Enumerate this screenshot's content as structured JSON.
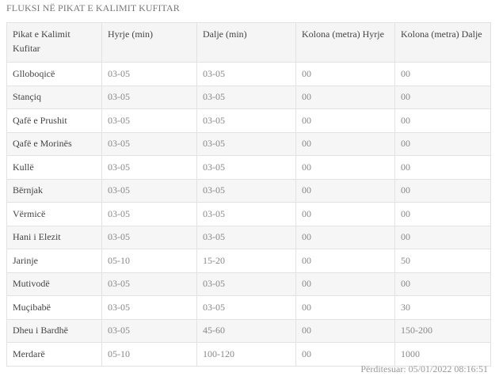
{
  "title": "FLUKSI NË PIKAT E KALIMIT KUFITAR",
  "headers": [
    "Pikat e Kalimit Kufitar",
    "Hyrje (min)",
    "Dalje (min)",
    "Kolona (metra) Hyrje",
    "Kolona (metra) Dalje"
  ],
  "rows": [
    [
      "Glloboqicë",
      "03-05",
      "03-05",
      "00",
      "00"
    ],
    [
      "Stançiq",
      "03-05",
      "03-05",
      "00",
      "00"
    ],
    [
      "Qafë e Prushit",
      "03-05",
      "03-05",
      "00",
      "00"
    ],
    [
      "Qafë e Morinës",
      "03-05",
      "03-05",
      "00",
      "00"
    ],
    [
      "Kullë",
      "03-05",
      "03-05",
      "00",
      "00"
    ],
    [
      "Bërnjak",
      "03-05",
      "03-05",
      "00",
      "00"
    ],
    [
      "Vërmicë",
      "03-05",
      "03-05",
      "00",
      "00"
    ],
    [
      "Hani i Elezit",
      "03-05",
      "03-05",
      "00",
      "00"
    ],
    [
      "Jarinje",
      "05-10",
      "15-20",
      "00",
      "50"
    ],
    [
      "Mutivodë",
      "03-05",
      "03-05",
      "00",
      "00"
    ],
    [
      "Muçibabë",
      "03-05",
      "03-05",
      "00",
      "30"
    ],
    [
      "Dheu i Bardhë",
      "03-05",
      "45-60",
      "00",
      "150-200"
    ],
    [
      "Merdarë",
      "05-10",
      "100-120",
      "00",
      "1000"
    ]
  ],
  "footer": "Përditesuar: 05/01/2022 08:16:51"
}
